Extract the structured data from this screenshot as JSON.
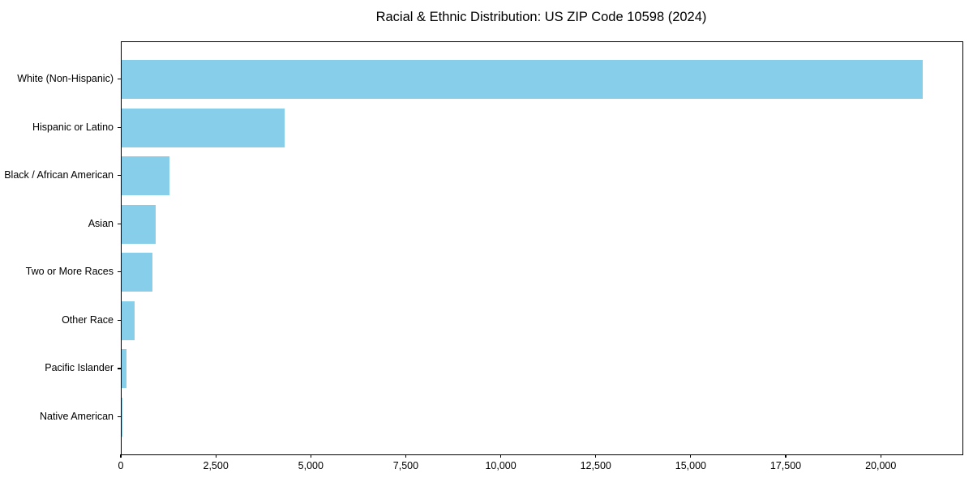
{
  "title": "Racial & Ethnic Distribution: US ZIP Code 10598 (2024)",
  "chart_data": {
    "type": "bar",
    "orientation": "horizontal",
    "title": "Racial & Ethnic Distribution: US ZIP Code 10598 (2024)",
    "xlabel": "",
    "ylabel": "",
    "categories": [
      "White (Non-Hispanic)",
      "Hispanic or Latino",
      "Black / African American",
      "Asian",
      "Two or More Races",
      "Other Race",
      "Pacific Islander",
      "Native American"
    ],
    "values": [
      21075,
      4280,
      1250,
      900,
      815,
      340,
      120,
      10
    ],
    "xlim": [
      0,
      22130
    ],
    "xticks": [
      0,
      2500,
      5000,
      7500,
      10000,
      12500,
      15000,
      17500,
      20000
    ],
    "xtick_labels": [
      "0",
      "2,500",
      "5,000",
      "7,500",
      "10,000",
      "12,500",
      "15,000",
      "17,500",
      "20,000"
    ],
    "bar_color": "#87CEEB",
    "background_color": "#ffffff",
    "text_color": "#000000",
    "spine_color": "#000000",
    "grid": false,
    "legend": null
  }
}
